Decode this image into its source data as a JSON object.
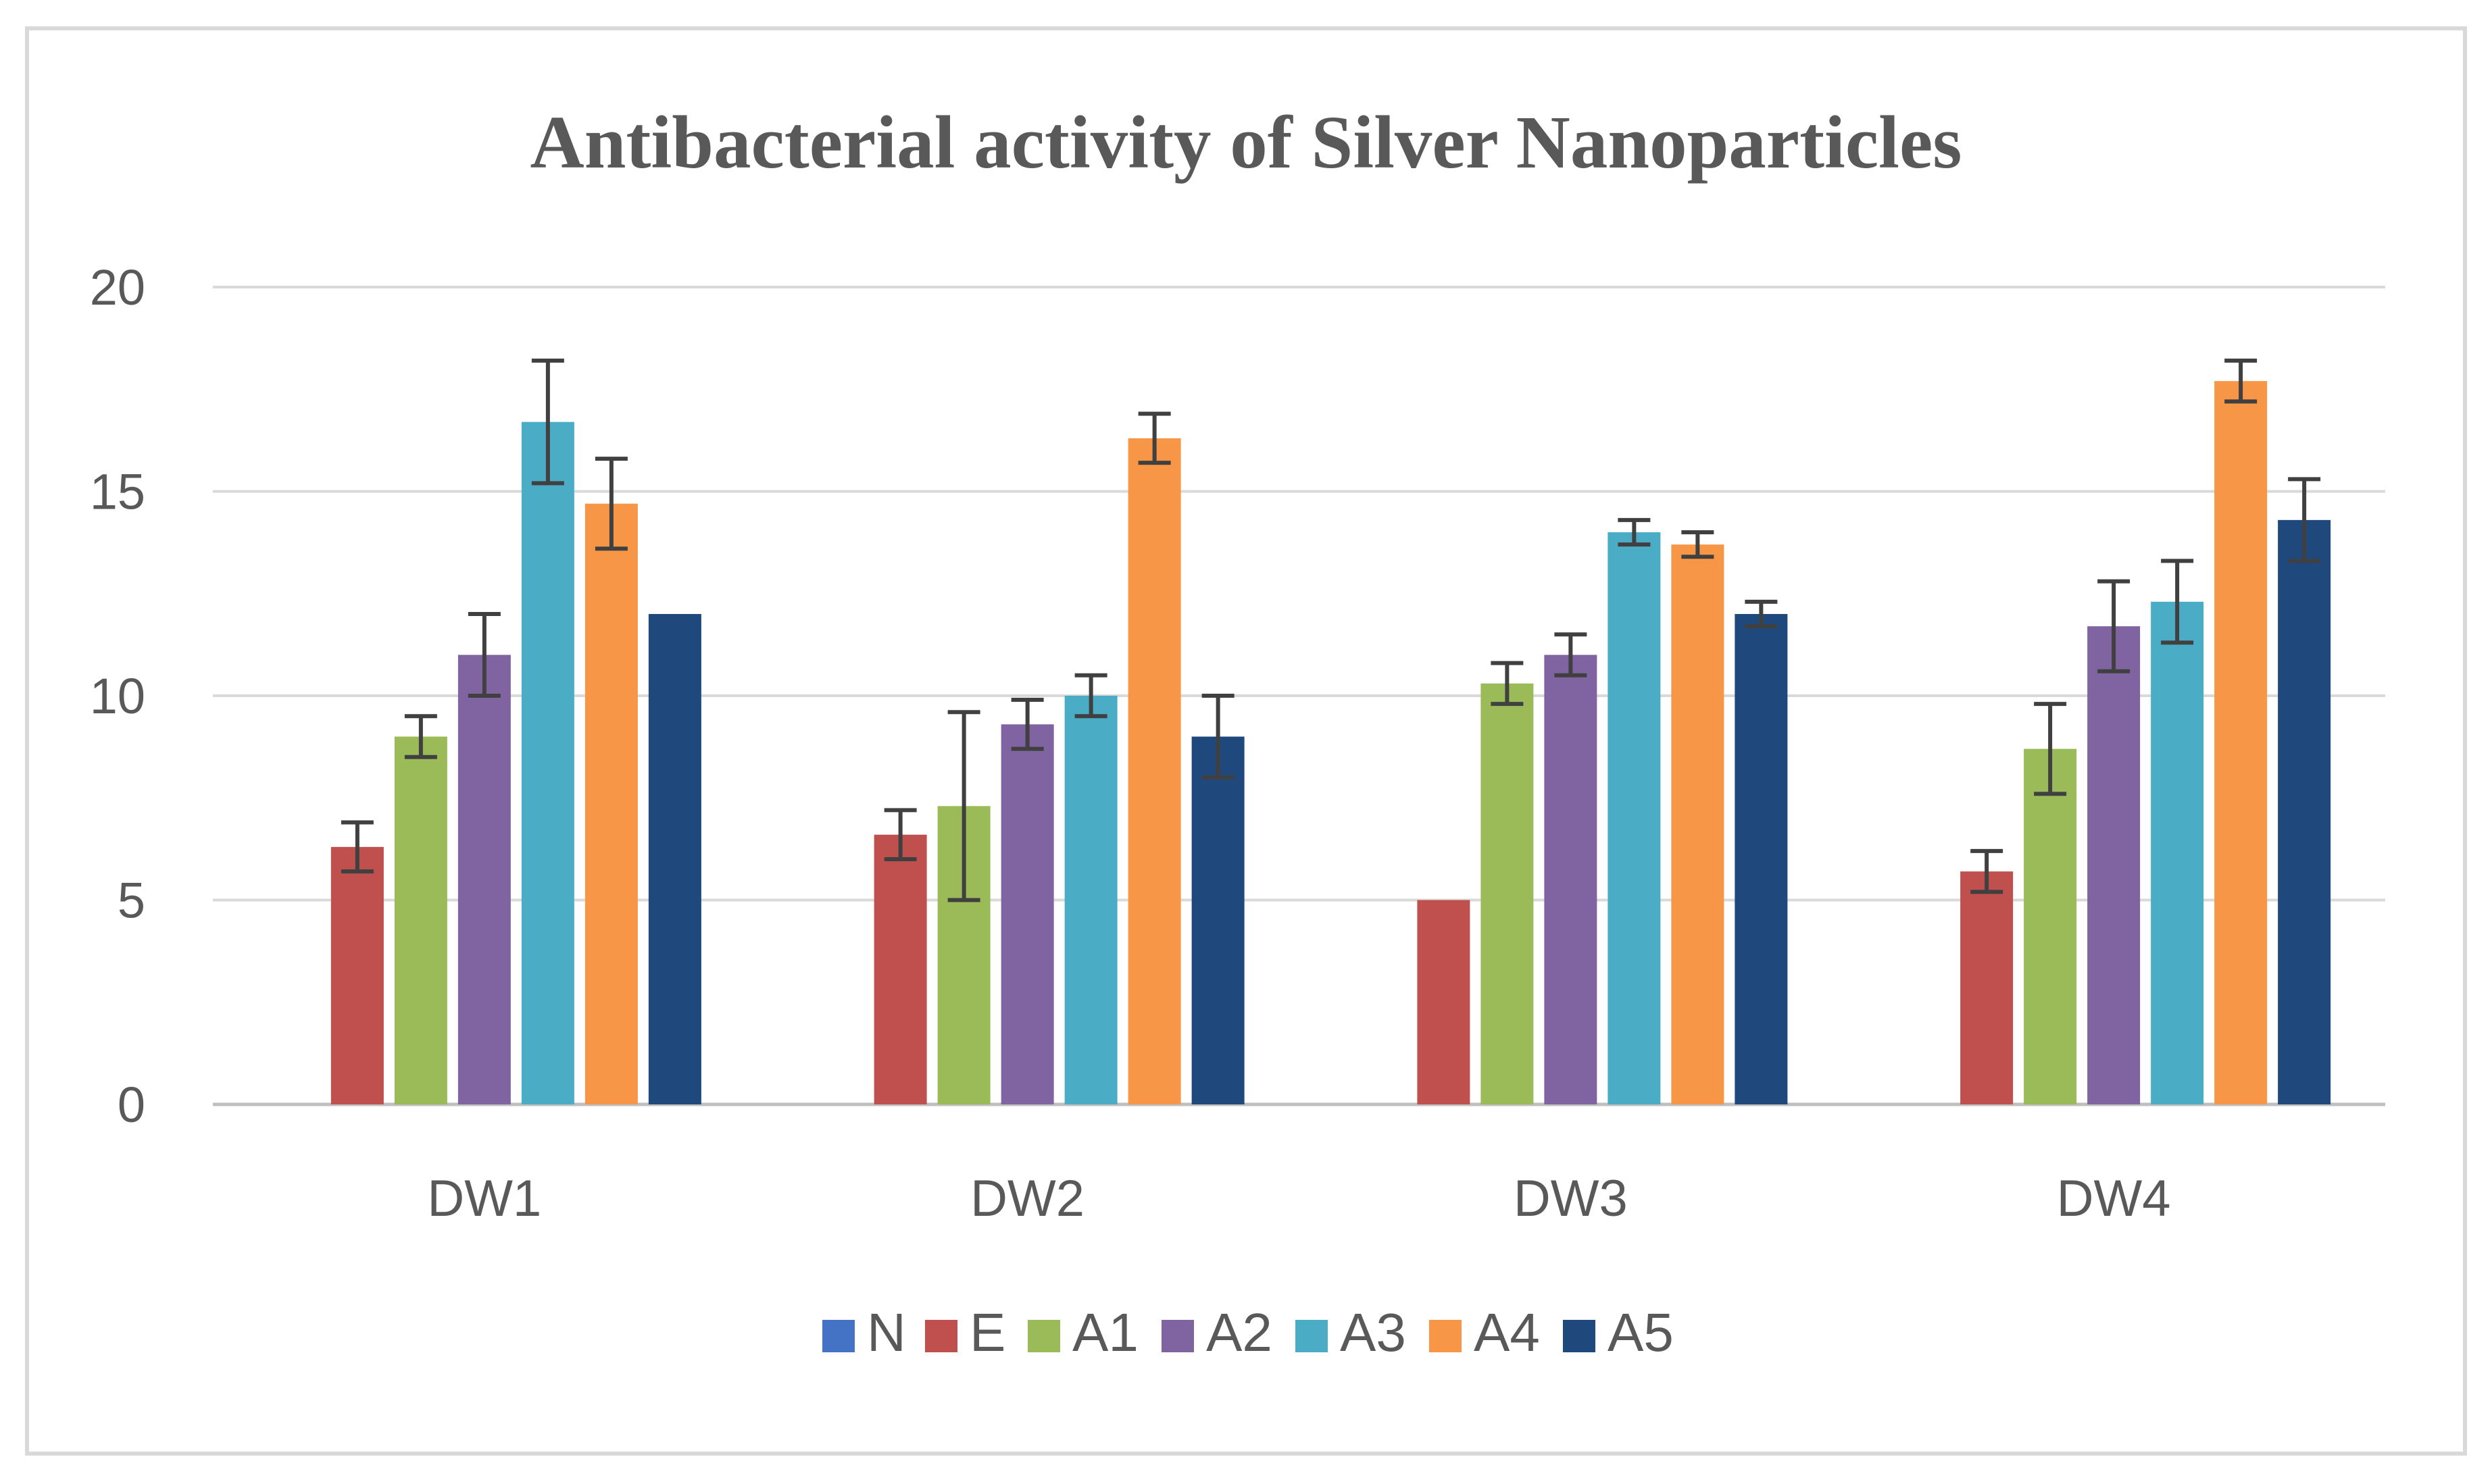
{
  "chart_data": {
    "type": "bar",
    "title": "Antibacterial activity of Silver Nanoparticles",
    "xlabel": "",
    "ylabel": "",
    "ylim": [
      0,
      20
    ],
    "yticks": [
      0,
      5,
      10,
      15,
      20
    ],
    "grid": true,
    "legend_position": "bottom",
    "categories": [
      "DW1",
      "DW2",
      "DW3",
      "DW4"
    ],
    "series": [
      {
        "name": "N",
        "color": "#4472C4",
        "values": [
          0,
          0,
          0,
          0
        ],
        "errors": [
          0,
          0,
          0,
          0
        ]
      },
      {
        "name": "E",
        "color": "#C0504D",
        "values": [
          6.3,
          6.6,
          5.0,
          5.7
        ],
        "errors": [
          0.6,
          0.6,
          0,
          0.5
        ]
      },
      {
        "name": "A1",
        "color": "#9BBB59",
        "values": [
          9.0,
          7.3,
          10.3,
          8.7
        ],
        "errors": [
          0.5,
          2.3,
          0.5,
          1.1
        ]
      },
      {
        "name": "A2",
        "color": "#8064A2",
        "values": [
          11.0,
          9.3,
          11.0,
          11.7
        ],
        "errors": [
          1.0,
          0.6,
          0.5,
          1.1
        ]
      },
      {
        "name": "A3",
        "color": "#4BACC6",
        "values": [
          16.7,
          10.0,
          14.0,
          12.3
        ],
        "errors": [
          1.5,
          0.5,
          0.3,
          1.0
        ]
      },
      {
        "name": "A4",
        "color": "#F79646",
        "values": [
          14.7,
          16.3,
          13.7,
          17.7
        ],
        "errors": [
          1.1,
          0.6,
          0.3,
          0.5
        ]
      },
      {
        "name": "A5",
        "color": "#1F497D",
        "values": [
          12.0,
          9.0,
          12.0,
          14.3
        ],
        "errors": [
          0,
          1.0,
          0.3,
          1.0
        ]
      }
    ]
  }
}
